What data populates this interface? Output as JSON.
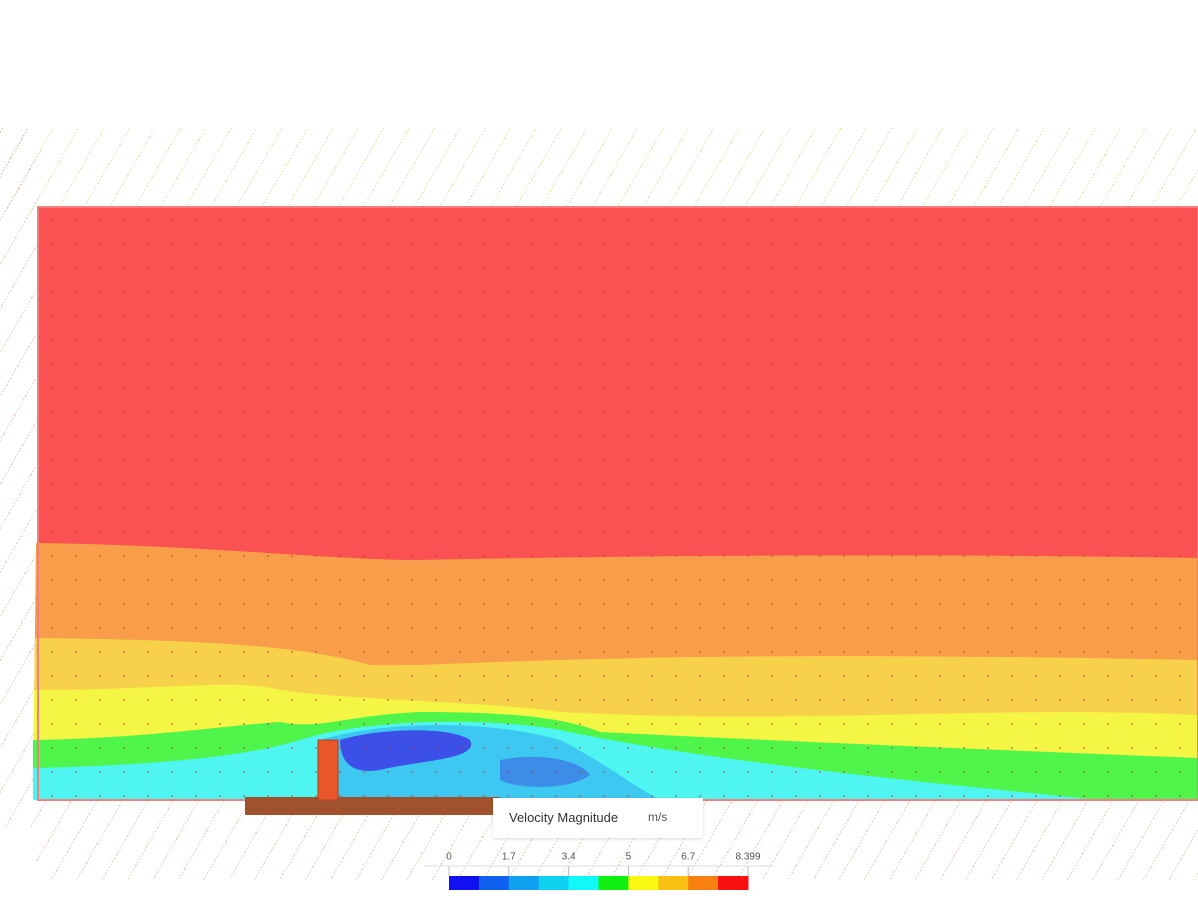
{
  "legend": {
    "title": "Velocity Magnitude",
    "unit": "m/s",
    "ticks": [
      "0",
      "1.7",
      "3.4",
      "5",
      "6.7",
      "8.399"
    ],
    "colors": [
      "#1010f0",
      "#1060f0",
      "#10a0f0",
      "#10d0f0",
      "#10f8f8",
      "#10f010",
      "#f8f810",
      "#f8c010",
      "#f88010",
      "#f81010"
    ]
  }
}
